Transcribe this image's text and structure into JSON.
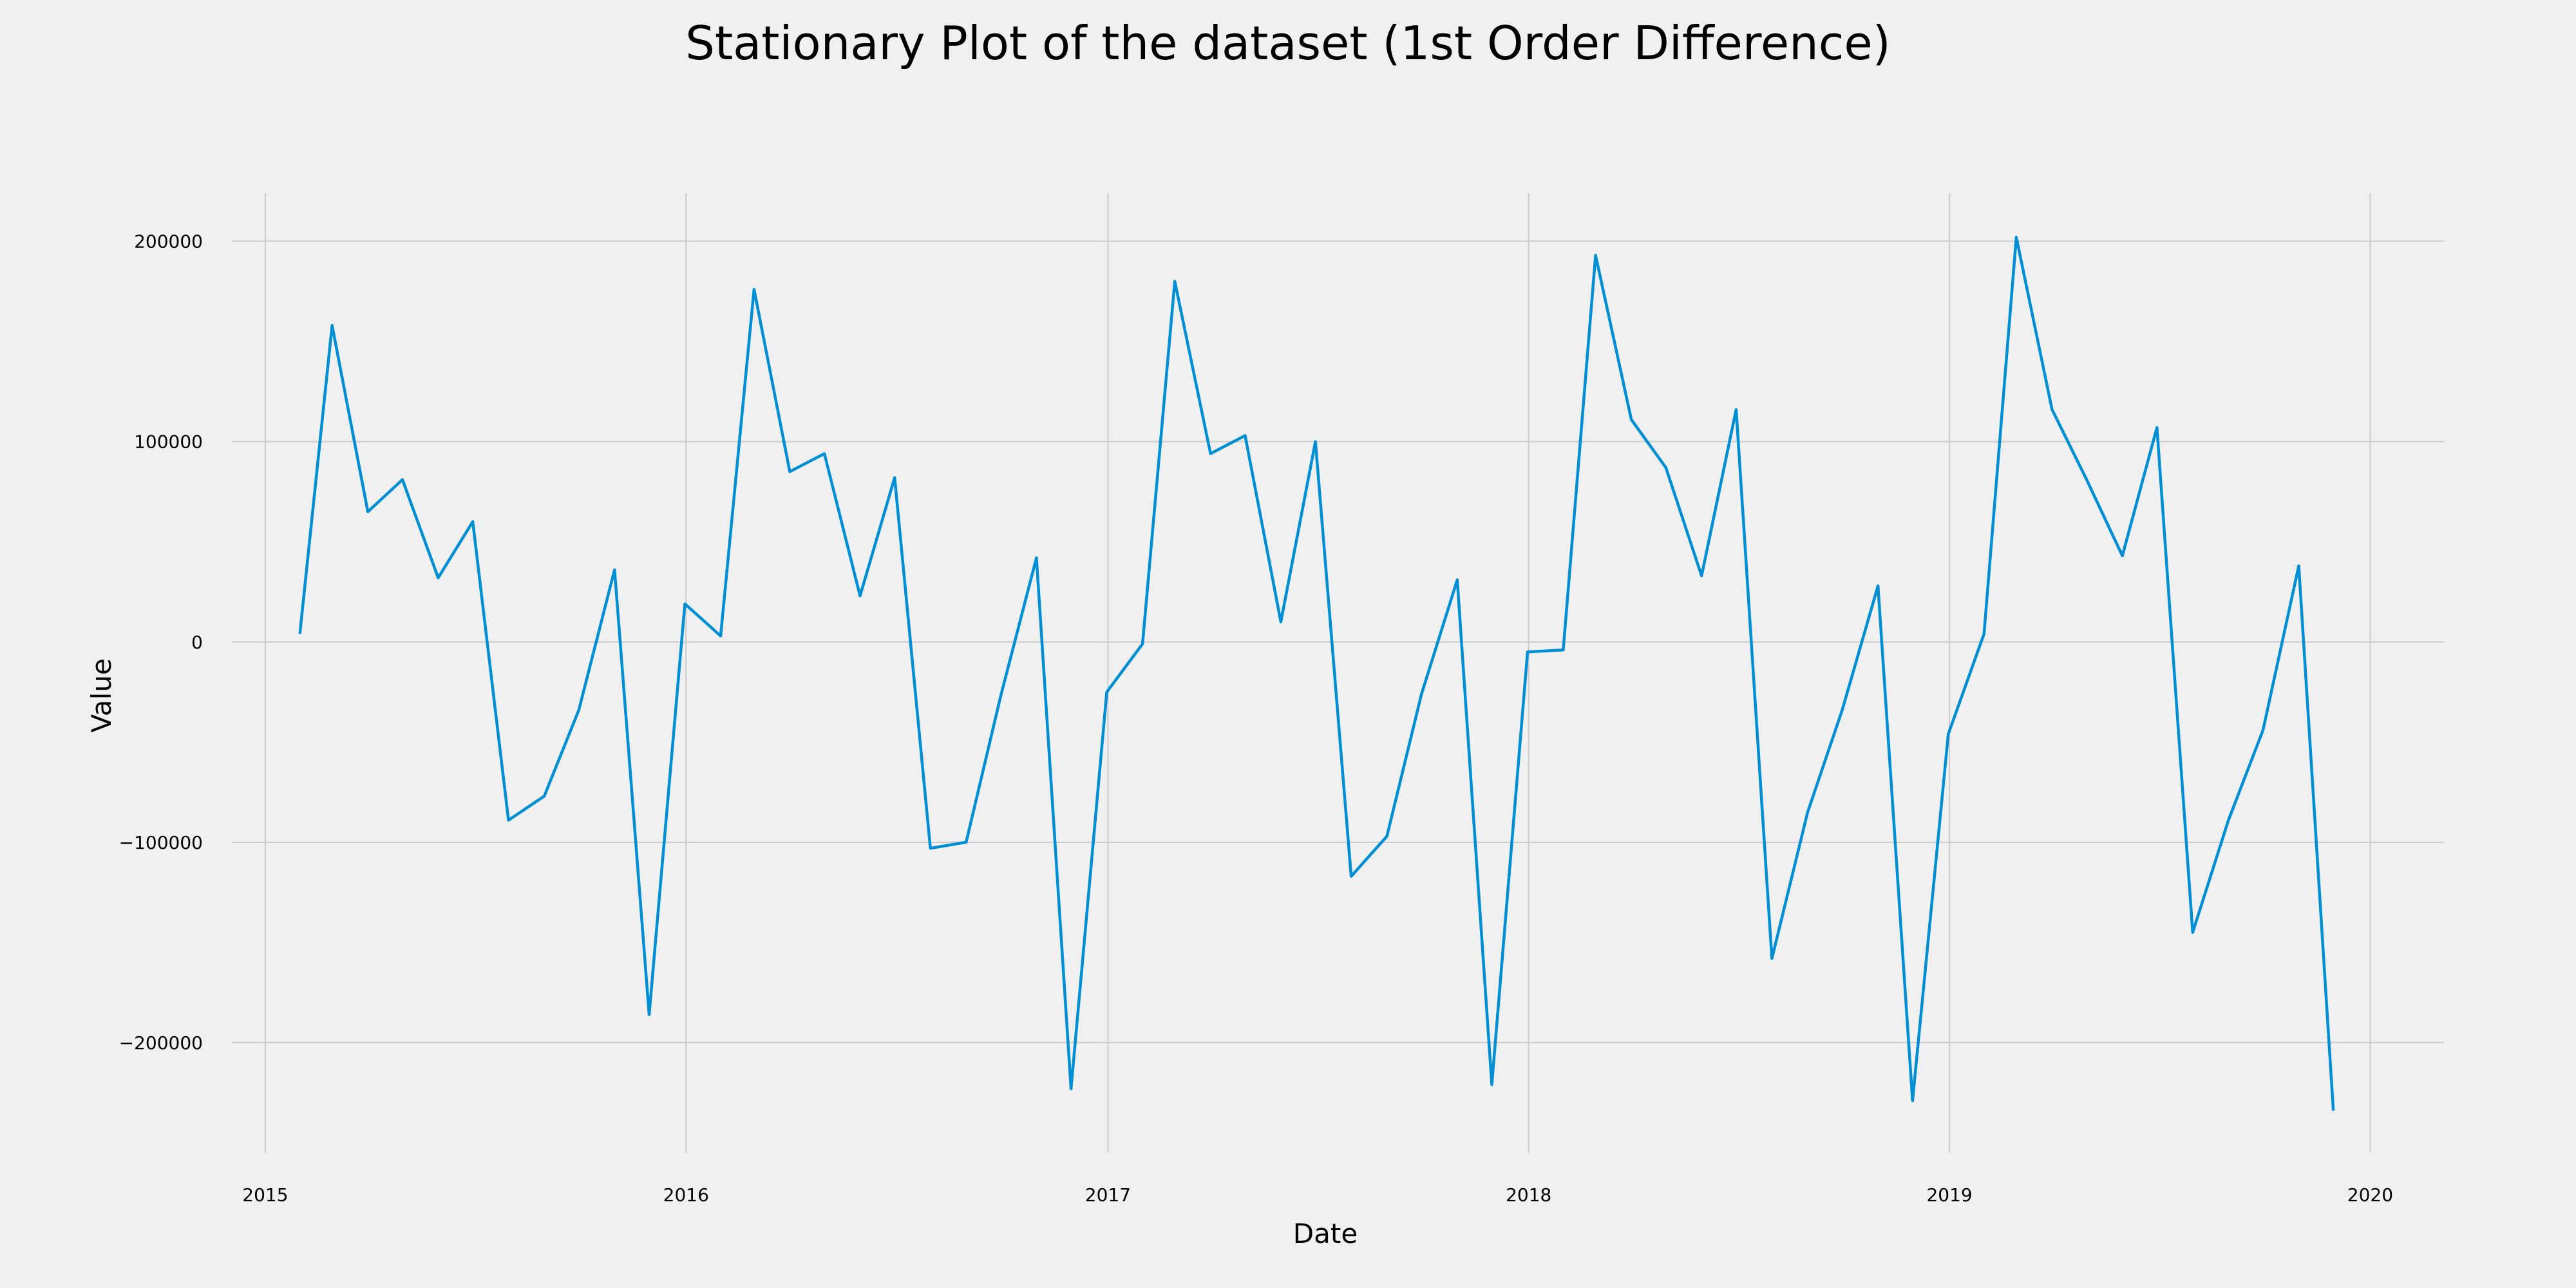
{
  "chart_data": {
    "type": "line",
    "title": "Stationary Plot of the dataset (1st Order Difference)",
    "xlabel": "Date",
    "ylabel": "Value",
    "xlim": [
      "2014-12-03",
      "2020-03-05"
    ],
    "ylim": [
      -255000,
      224000
    ],
    "xticks": [
      {
        "label": "2015",
        "date": "2015-01-01"
      },
      {
        "label": "2016",
        "date": "2016-01-01"
      },
      {
        "label": "2017",
        "date": "2017-01-01"
      },
      {
        "label": "2018",
        "date": "2018-01-01"
      },
      {
        "label": "2019",
        "date": "2019-01-01"
      },
      {
        "label": "2020",
        "date": "2020-01-01"
      }
    ],
    "yticks": [
      {
        "label": "−200000",
        "value": -200000
      },
      {
        "label": "−100000",
        "value": -100000
      },
      {
        "label": "0",
        "value": 0
      },
      {
        "label": "100000",
        "value": 100000
      },
      {
        "label": "200000",
        "value": 200000
      }
    ],
    "grid": true,
    "series": [
      {
        "color": "#008fd5",
        "x": [
          "2015-01-31",
          "2015-02-28",
          "2015-03-31",
          "2015-04-30",
          "2015-05-31",
          "2015-06-30",
          "2015-07-31",
          "2015-08-31",
          "2015-09-30",
          "2015-10-31",
          "2015-11-30",
          "2015-12-31",
          "2016-01-31",
          "2016-02-29",
          "2016-03-31",
          "2016-04-30",
          "2016-05-31",
          "2016-06-30",
          "2016-07-31",
          "2016-08-31",
          "2016-09-30",
          "2016-10-31",
          "2016-11-30",
          "2016-12-31",
          "2017-01-31",
          "2017-02-28",
          "2017-03-31",
          "2017-04-30",
          "2017-05-31",
          "2017-06-30",
          "2017-07-31",
          "2017-08-31",
          "2017-09-30",
          "2017-10-31",
          "2017-11-30",
          "2017-12-31",
          "2018-01-31",
          "2018-02-28",
          "2018-03-31",
          "2018-04-30",
          "2018-05-31",
          "2018-06-30",
          "2018-07-31",
          "2018-08-31",
          "2018-09-30",
          "2018-10-31",
          "2018-11-30",
          "2018-12-31",
          "2019-01-31",
          "2019-02-28",
          "2019-03-31",
          "2019-04-30",
          "2019-05-31",
          "2019-06-30",
          "2019-07-31",
          "2019-08-31",
          "2019-09-30",
          "2019-10-31",
          "2019-11-30"
        ],
        "values": [
          4000,
          158000,
          65000,
          81000,
          32000,
          60000,
          -89000,
          -77000,
          -34000,
          36000,
          -186000,
          19000,
          3000,
          176000,
          85000,
          94000,
          23000,
          82000,
          -103000,
          -100000,
          -27000,
          42000,
          -223000,
          -25000,
          -1000,
          180000,
          94000,
          103000,
          10000,
          100000,
          -117000,
          -97000,
          -26000,
          31000,
          -221000,
          -5000,
          -4000,
          193000,
          111000,
          87000,
          33000,
          116000,
          -158000,
          -85000,
          -34000,
          28000,
          -229000,
          -46000,
          4000,
          202000,
          116000,
          81000,
          43000,
          107000,
          -145000,
          -89000,
          -44000,
          38000,
          -234000
        ]
      }
    ]
  }
}
